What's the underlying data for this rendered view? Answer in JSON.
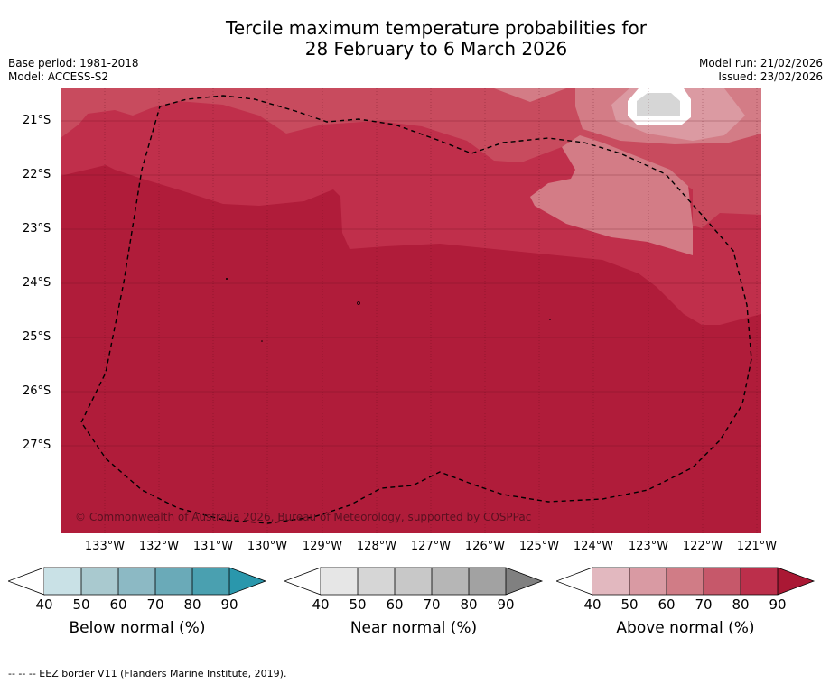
{
  "title": {
    "line1": "Tercile maximum temperature probabilities for",
    "line2": "28 February to 6 March 2026"
  },
  "meta": {
    "base_period": "Base period: 1981-2018",
    "model": "Model: ACCESS-S2",
    "model_run": "Model run: 21/02/2026",
    "issued": "Issued: 23/02/2026"
  },
  "map": {
    "copyright": "© Commonwealth of Australia 2026, Bureau of Meteorology, supported by COSPPac",
    "lat_labels": [
      "21°S",
      "22°S",
      "23°S",
      "24°S",
      "25°S",
      "26°S",
      "27°S"
    ],
    "lon_labels": [
      "133°W",
      "132°W",
      "131°W",
      "130°W",
      "129°W",
      "128°W",
      "127°W",
      "126°W",
      "125°W",
      "124°W",
      "123°W",
      "122°W",
      "121°W"
    ],
    "colors": {
      "above_90": "#b01c3a",
      "above_80": "#c02f4b",
      "above_70": "#c84b5e",
      "above_60": "#d37c86",
      "above_50": "#db9aa2",
      "near_50": "#d6d6d6",
      "white": "#ffffff"
    }
  },
  "colorbars": {
    "ticks": [
      "40",
      "50",
      "60",
      "70",
      "80",
      "90"
    ],
    "below": {
      "title": "Below normal (%)",
      "colors": [
        "#c9e1e6",
        "#a9c9cf",
        "#8cb9c4",
        "#6aaab8",
        "#4aa0b0",
        "#2a97ac"
      ]
    },
    "near": {
      "title": "Near normal (%)",
      "colors": [
        "#e6e6e6",
        "#d6d6d6",
        "#c8c8c8",
        "#b6b6b6",
        "#a2a2a2",
        "#808080"
      ]
    },
    "above": {
      "title": "Above normal (%)",
      "colors": [
        "#e2b8bf",
        "#d99aa3",
        "#d07c86",
        "#c6586a",
        "#bc2f4b",
        "#aa1834"
      ]
    }
  },
  "footer": "--  --  -- EEZ border V11 (Flanders Marine Institute, 2019)."
}
